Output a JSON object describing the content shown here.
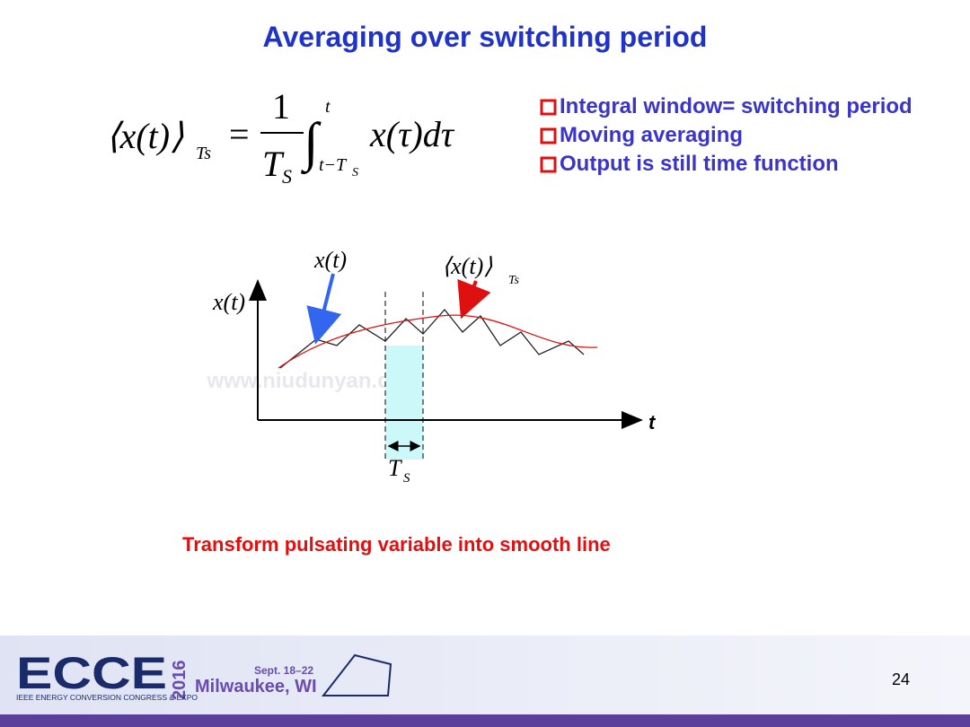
{
  "title": "Averaging over switching period",
  "formula": {
    "lhs": "⟨x(t)⟩",
    "lhs_sub": "Ts",
    "equals": "=",
    "numerator": "1",
    "denominator": "T",
    "denominator_sub": "S",
    "integral": "∫",
    "upper_limit": "t",
    "lower_limit": "t−T",
    "lower_limit_sub": "S",
    "integrand": "x(τ)dτ"
  },
  "bullets": [
    "Integral window= switching period",
    "Moving averaging",
    "Output is still time function"
  ],
  "diagram": {
    "signal_label": "x(t)",
    "average_label": "⟨x(t)⟩",
    "average_sub": "Ts",
    "y_axis_label": "x(t)",
    "x_axis_label": "t",
    "period_label": "T",
    "period_sub": "S",
    "watermark": "www.niudunyan.com"
  },
  "caption": "Transform pulsating variable into smooth line",
  "footer": {
    "logo": "ECCE",
    "year": "2016",
    "org": "IEEE ENERGY CONVERSION CONGRESS & EXPO",
    "dates": "Sept. 18–22",
    "place": "Milwaukee, WI",
    "page_number": "24"
  }
}
